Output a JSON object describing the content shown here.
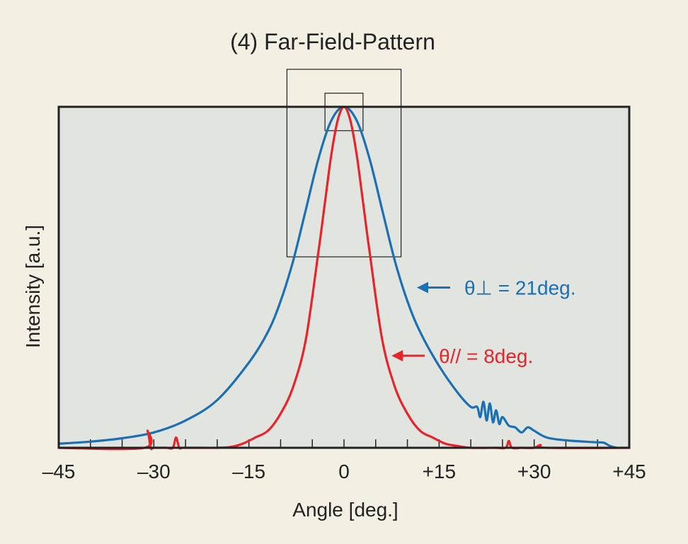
{
  "chart_data": {
    "type": "line",
    "title": "(4) Far-Field-Pattern",
    "xlabel": "Angle [deg.]",
    "ylabel": "Intensity [a.u.]",
    "xlim": [
      -45,
      45
    ],
    "ylim": [
      0,
      1
    ],
    "x_tick_labels": [
      "–45",
      "–30",
      "–15",
      "0",
      "+15",
      "+30",
      "+45"
    ],
    "x_tick_values": [
      -45,
      -30,
      -15,
      0,
      15,
      30,
      45
    ],
    "colors": {
      "perpendicular": "#1a6fb5",
      "parallel": "#e8242b",
      "plot_bg": "#e1e4df",
      "page_bg": "#f3efe3"
    },
    "annotations": [
      {
        "id": "perp",
        "text": "θ⊥ = 21deg.",
        "color": "#1a6fb5",
        "arrow_to": [
          11.5,
          0.47
        ]
      },
      {
        "id": "par",
        "text": "θ// = 8deg.",
        "color": "#e8242b",
        "arrow_to": [
          7.5,
          0.27
        ]
      }
    ],
    "series": [
      {
        "id": "perp",
        "color": "#1a6fb5",
        "x": [
          -45,
          -40,
          -35,
          -30,
          -25,
          -20,
          -15,
          -12,
          -10,
          -8,
          -6,
          -4,
          -2,
          0,
          2,
          4,
          6,
          8,
          10,
          12,
          15,
          18,
          20,
          21,
          21.5,
          22,
          22.5,
          23,
          23.5,
          24,
          24.5,
          25,
          26,
          27,
          28,
          29,
          30,
          32,
          35,
          38,
          40,
          41,
          42,
          43
        ],
        "y": [
          0.012,
          0.018,
          0.028,
          0.045,
          0.08,
          0.14,
          0.25,
          0.34,
          0.43,
          0.55,
          0.7,
          0.85,
          0.96,
          1.0,
          0.96,
          0.85,
          0.7,
          0.55,
          0.43,
          0.34,
          0.24,
          0.16,
          0.12,
          0.12,
          0.09,
          0.135,
          0.08,
          0.13,
          0.075,
          0.11,
          0.07,
          0.09,
          0.065,
          0.06,
          0.045,
          0.06,
          0.05,
          0.03,
          0.022,
          0.018,
          0.016,
          0.015,
          0.005,
          0.0
        ]
      },
      {
        "id": "par",
        "color": "#e8242b",
        "x": [
          -45,
          -31.5,
          -31,
          -30.5,
          -30,
          -28,
          -27,
          -26.5,
          -26,
          -25.5,
          -24,
          -20,
          -18,
          -16,
          -14,
          -12,
          -10,
          -8,
          -6,
          -4,
          -3,
          -2,
          -1,
          0,
          1,
          2,
          3,
          4,
          6,
          8,
          10,
          12,
          14,
          16,
          18,
          20,
          24,
          25.5,
          26,
          26.5,
          28,
          30,
          31,
          32,
          45
        ],
        "y": [
          0.0,
          0.0,
          0.05,
          0.0,
          0.0,
          0.0,
          0.0,
          0.03,
          0.0,
          0.0,
          0.0,
          0.0,
          0.002,
          0.012,
          0.03,
          0.05,
          0.1,
          0.18,
          0.32,
          0.58,
          0.72,
          0.86,
          0.96,
          1.0,
          0.96,
          0.86,
          0.72,
          0.58,
          0.32,
          0.18,
          0.1,
          0.05,
          0.03,
          0.012,
          0.005,
          0.0,
          0.0,
          0.0,
          0.02,
          0.0,
          0.0,
          0.0,
          0.008,
          0.0,
          0.0
        ]
      }
    ],
    "boxes": [
      {
        "x": [
          -9,
          9
        ],
        "y": [
          0.56,
          1.11
        ]
      },
      {
        "x": [
          -3,
          3
        ],
        "y": [
          0.93,
          1.04
        ]
      }
    ]
  }
}
